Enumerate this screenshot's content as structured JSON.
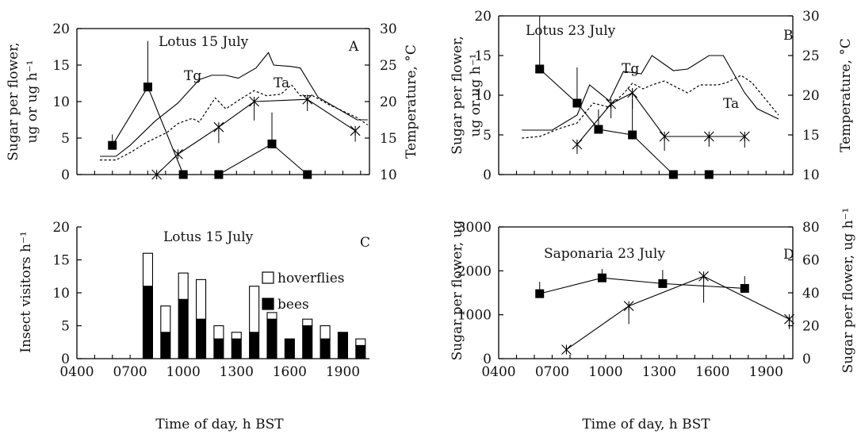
{
  "chart_data": [
    {
      "panel": "A",
      "title": "Lotus 15 July",
      "type": "line",
      "ylabel": "Sugar per flower, ug or ug h⁻¹",
      "ylabel_line1": "Sugar per flower,",
      "ylabel_line2": "ug or ug h⁻¹",
      "ylabel_right": "Temperature, °C",
      "ylim": [
        0,
        20
      ],
      "yticks": [
        "0",
        "5",
        "10",
        "15",
        "20"
      ],
      "ylim_right": [
        10,
        30
      ],
      "yticks_right": [
        "10",
        "15",
        "20",
        "25",
        "30"
      ],
      "xlim": [
        4,
        20.5
      ],
      "series": [
        {
          "marker": "square",
          "axis": "left",
          "x": [
            6,
            8,
            10,
            12,
            15,
            17
          ],
          "y": [
            4,
            12,
            0,
            0,
            4.2,
            0
          ],
          "err_up": [
            1.5,
            6.3,
            0,
            0,
            4.3,
            0
          ],
          "err_down": [
            0,
            0,
            0,
            0,
            0,
            0
          ]
        },
        {
          "marker": "star",
          "axis": "left",
          "x": [
            8.5,
            9.7,
            12,
            14,
            17,
            19.7
          ],
          "y": [
            0,
            2.8,
            6.5,
            10,
            10.3,
            6
          ],
          "err_up": [
            0,
            0,
            0,
            0,
            0,
            0
          ],
          "err_down": [
            0,
            0,
            2.2,
            2.6,
            1.6,
            1.5
          ]
        },
        {
          "name": "Tg",
          "axis": "right",
          "style": "solid",
          "x": [
            5.3,
            6.2,
            7,
            8.4,
            9.7,
            10.9,
            11.6,
            12.4,
            13.1,
            14.1,
            14.8,
            15.1,
            16.1,
            16.6,
            17.6,
            19.8,
            20.4
          ],
          "y": [
            12.5,
            12.5,
            14,
            17.3,
            19.8,
            23,
            23.6,
            23.6,
            23.2,
            24.6,
            26.7,
            25,
            24.8,
            24.6,
            20.6,
            17.5,
            17.5
          ]
        },
        {
          "name": "Ta",
          "axis": "right",
          "style": "dotted",
          "x": [
            5.3,
            6.2,
            7,
            8,
            8.6,
            9.1,
            9.7,
            10.5,
            10.9,
            11.8,
            12.4,
            13.2,
            14,
            14.7,
            15.5,
            16.1,
            16.6,
            17.3,
            18.2,
            19.8,
            20.4
          ],
          "y": [
            12,
            12,
            13,
            14.5,
            15.2,
            15.8,
            17,
            17.7,
            17.2,
            20.5,
            19,
            20.3,
            21.5,
            20.8,
            21,
            22.3,
            20.8,
            20.8,
            19.6,
            17.8,
            16.8
          ]
        }
      ],
      "annotations": [
        "Tg",
        "Ta"
      ]
    },
    {
      "panel": "B",
      "title": "Lotus 23 July",
      "type": "line",
      "ylabel": "Sugar per flower, ug or ug h⁻¹",
      "ylabel_line1": "Sugar per flower,",
      "ylabel_line2": "ug or ug h⁻¹",
      "ylabel_right": "Temperature, °C",
      "ylim": [
        0,
        20
      ],
      "yticks": [
        "0",
        "5",
        "10",
        "15",
        "20"
      ],
      "ylim_right": [
        10,
        30
      ],
      "yticks_right": [
        "10",
        "15",
        "20",
        "25",
        "30"
      ],
      "xlim": [
        4,
        20.5
      ],
      "series": [
        {
          "marker": "square",
          "axis": "left",
          "x": [
            6.3,
            8.4,
            9.6,
            11.5,
            13.8,
            15.8
          ],
          "y": [
            13.3,
            9,
            5.7,
            5,
            0,
            0
          ],
          "err_up": [
            6.7,
            4.5,
            2.5,
            4.5,
            0,
            0
          ],
          "err_down": [
            0,
            0,
            0,
            0,
            0,
            0
          ]
        },
        {
          "marker": "star",
          "axis": "left",
          "x": [
            8.4,
            10.3,
            11.5,
            13.3,
            15.8,
            17.8
          ],
          "y": [
            3.8,
            8.9,
            10.3,
            4.8,
            4.8,
            4.8
          ],
          "err_up": [
            0,
            0,
            0,
            0,
            0,
            0
          ],
          "err_down": [
            1.2,
            1.8,
            2,
            1.8,
            1.3,
            1.4
          ]
        },
        {
          "name": "Tg",
          "axis": "right",
          "style": "solid",
          "x": [
            5.3,
            7,
            8.4,
            9.1,
            10.2,
            11,
            12,
            12.6,
            13.8,
            14.6,
            15.8,
            16.6,
            17.8,
            18.5,
            19.7
          ],
          "y": [
            15.6,
            15.6,
            17.5,
            21.3,
            19.3,
            23,
            22.7,
            25,
            23.1,
            23.3,
            25,
            25,
            20.3,
            18.3,
            17
          ]
        },
        {
          "name": "Ta",
          "axis": "right",
          "style": "dotted",
          "x": [
            5.3,
            6.3,
            7.4,
            8.4,
            9.3,
            10.2,
            11,
            11.5,
            12.1,
            12.6,
            13.3,
            13.8,
            14.6,
            15.3,
            16.3,
            16.8,
            17.6,
            18.2,
            19.7
          ],
          "y": [
            14.6,
            14.8,
            15.8,
            16.5,
            19,
            18.5,
            20.2,
            21.5,
            20.8,
            21.3,
            21.8,
            21.2,
            20.3,
            21.3,
            21.3,
            21.6,
            22.5,
            21.6,
            17.5
          ]
        }
      ],
      "annotations": [
        "Tg",
        "Ta"
      ]
    },
    {
      "panel": "C",
      "title": "Lotus 15 July",
      "type": "bar",
      "stacked": true,
      "ylabel": "Insect visitors h⁻¹",
      "xlabel": "Time of day, h BST",
      "ylim": [
        0,
        20
      ],
      "yticks": [
        "0",
        "5",
        "10",
        "15",
        "20"
      ],
      "xlim": [
        4,
        20.5
      ],
      "xticks": [
        "0400",
        "0700",
        "1000",
        "1300",
        "1600",
        "1900"
      ],
      "categories": [
        8,
        9,
        10,
        11,
        12,
        13,
        14,
        15,
        16,
        17,
        18,
        19,
        20
      ],
      "series": [
        {
          "name": "bees",
          "color": "#000000",
          "values": [
            11,
            4,
            9,
            6,
            3,
            3,
            4,
            6,
            3,
            5,
            3,
            4,
            2
          ]
        },
        {
          "name": "hoverflies",
          "color": "#ffffff",
          "values": [
            5,
            4,
            4,
            6,
            2,
            1,
            7,
            1,
            0,
            1,
            2,
            0,
            1
          ]
        }
      ],
      "legend": "top-right"
    },
    {
      "panel": "D",
      "title": "Saponaria 23 July",
      "type": "line",
      "ylabel": "Sugar per flower, ug",
      "ylabel_right": "Sugar per flower, ug h⁻¹",
      "xlabel": "Time of day, h BST",
      "ylim": [
        0,
        3000
      ],
      "yticks": [
        "0",
        "1000",
        "2000",
        "3000"
      ],
      "ylim_right": [
        0,
        80
      ],
      "yticks_right": [
        "0",
        "20",
        "40",
        "60",
        "80"
      ],
      "xlim": [
        4,
        20.5
      ],
      "xticks": [
        "0400",
        "0700",
        "1000",
        "1300",
        "1600",
        "1900"
      ],
      "series": [
        {
          "marker": "square",
          "axis": "left",
          "x": [
            6.3,
            9.8,
            13.2,
            17.8
          ],
          "y": [
            1480,
            1840,
            1710,
            1600
          ],
          "err_up": [
            270,
            200,
            310,
            280
          ],
          "err_down": [
            0,
            0,
            0,
            0
          ]
        },
        {
          "marker": "star",
          "axis": "right",
          "x": [
            7.8,
            11.3,
            15.5,
            20.3
          ],
          "y": [
            5.5,
            32,
            50,
            24
          ],
          "err_up": [
            0,
            0,
            0,
            0
          ],
          "err_down": [
            0,
            11,
            16,
            6
          ]
        }
      ]
    }
  ]
}
